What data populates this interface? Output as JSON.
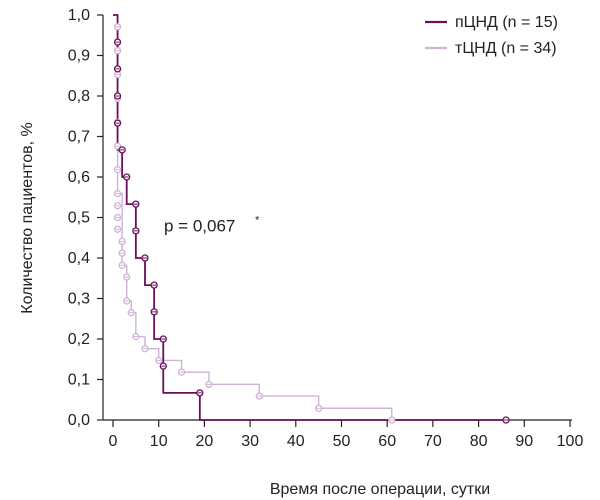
{
  "chart_data": {
    "type": "line",
    "xlabel": "Время после операции, сутки",
    "ylabel": "Количество пациентов, %",
    "xlim": [
      0,
      100
    ],
    "ylim": [
      0,
      1.0
    ],
    "x_ticks": [
      "0",
      "10",
      "20",
      "30",
      "40",
      "50",
      "60",
      "70",
      "80",
      "90",
      "100"
    ],
    "y_ticks": [
      "0,0",
      "0,1",
      "0,2",
      "0,3",
      "0,4",
      "0,5",
      "0,6",
      "0,7",
      "0,8",
      "0,9",
      "1,0"
    ],
    "grid": false,
    "legend_position": "top-right",
    "annotation": {
      "text": "p = 0,067",
      "superscript": "*",
      "x": 7,
      "y": 0.465
    },
    "series": [
      {
        "name": "пЦНД (n = 15)",
        "color": "#6b0f5a",
        "step_x": [
          0,
          1,
          1,
          1,
          1,
          1,
          2,
          3,
          5,
          5,
          7,
          9,
          9,
          11,
          11,
          19,
          86
        ],
        "step_y": [
          1.0,
          0.933,
          0.867,
          0.8,
          0.733,
          0.667,
          0.6,
          0.533,
          0.467,
          0.4,
          0.333,
          0.267,
          0.2,
          0.133,
          0.067,
          0.0,
          0.0
        ],
        "markers_x": [
          1,
          1,
          1,
          1,
          2,
          3,
          5,
          5,
          7,
          9,
          9,
          11,
          11,
          19,
          86
        ],
        "markers_y": [
          0.933,
          0.867,
          0.8,
          0.733,
          0.667,
          0.6,
          0.533,
          0.467,
          0.4,
          0.333,
          0.267,
          0.2,
          0.133,
          0.067,
          0.0
        ]
      },
      {
        "name": "тЦНД (n = 34)",
        "color": "#cdb3d6",
        "step_x": [
          0,
          1,
          1,
          1,
          1,
          1,
          1,
          1,
          1,
          1,
          1,
          1,
          1,
          1,
          1,
          1,
          2,
          2,
          2,
          3,
          3,
          4,
          5,
          7,
          10,
          10,
          15,
          21,
          32,
          45,
          61
        ],
        "step_y": [
          1.0,
          0.971,
          0.941,
          0.912,
          0.882,
          0.853,
          0.824,
          0.794,
          0.765,
          0.735,
          0.706,
          0.676,
          0.647,
          0.618,
          0.588,
          0.559,
          0.529,
          0.441,
          0.382,
          0.353,
          0.294,
          0.265,
          0.206,
          0.176,
          0.147,
          0.147,
          0.118,
          0.088,
          0.059,
          0.029,
          0.0
        ],
        "markers_x": [
          1,
          1,
          1,
          1,
          1,
          1,
          1,
          1,
          1,
          1,
          1,
          2,
          2,
          2,
          3,
          3,
          4,
          5,
          7,
          10,
          15,
          21,
          32,
          45,
          61
        ],
        "markers_y": [
          0.971,
          0.912,
          0.853,
          0.794,
          0.735,
          0.676,
          0.618,
          0.559,
          0.529,
          0.5,
          0.471,
          0.441,
          0.412,
          0.382,
          0.353,
          0.294,
          0.265,
          0.206,
          0.176,
          0.147,
          0.118,
          0.088,
          0.059,
          0.029,
          0.0
        ]
      }
    ]
  }
}
